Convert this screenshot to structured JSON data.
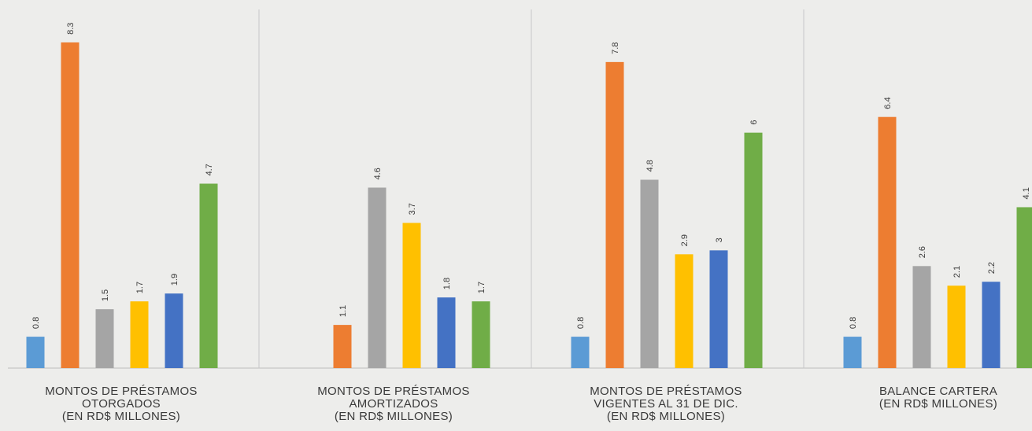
{
  "chart_data": {
    "type": "bar",
    "categories": [
      [
        "MONTOS DE PRÉSTAMOS",
        "OTORGADOS",
        "(EN RD$ MILLONES)"
      ],
      [
        "MONTOS DE PRÉSTAMOS",
        "AMORTIZADOS",
        "(EN RD$ MILLONES)"
      ],
      [
        "MONTOS DE PRÉSTAMOS",
        "VIGENTES AL 31 DE DIC.",
        "(EN RD$ MILLONES)"
      ],
      [
        "BALANCE CARTERA",
        "(EN RD$ MILLONES)"
      ]
    ],
    "series": [
      {
        "color": "#5b9bd5",
        "values": [
          0.8,
          null,
          0.8,
          0.8
        ]
      },
      {
        "color": "#ed7d31",
        "values": [
          8.3,
          1.1,
          7.8,
          6.4
        ]
      },
      {
        "color": "#a5a5a5",
        "values": [
          1.5,
          4.6,
          4.8,
          2.6
        ]
      },
      {
        "color": "#ffc000",
        "values": [
          1.7,
          3.7,
          2.9,
          2.1
        ]
      },
      {
        "color": "#4472c4",
        "values": [
          1.9,
          1.8,
          3,
          2.2
        ]
      },
      {
        "color": "#70ad47",
        "values": [
          4.7,
          1.7,
          6,
          4.1
        ]
      }
    ],
    "ylim": [
      0,
      9
    ]
  }
}
